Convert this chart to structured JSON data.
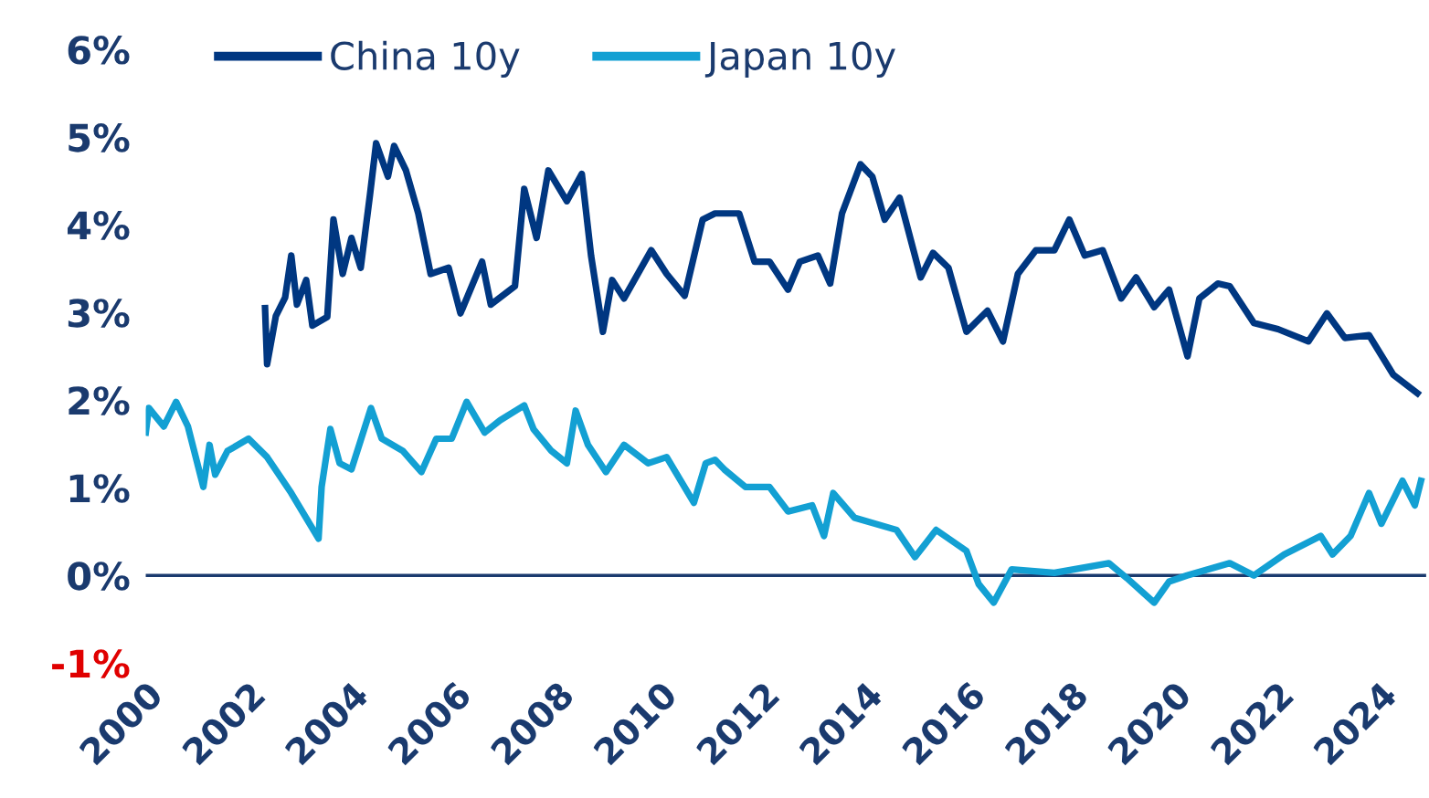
{
  "chart_data": {
    "type": "line",
    "xlim": [
      2000,
      2024.9
    ],
    "xticks": [
      2000,
      2002,
      2004,
      2006,
      2008,
      2010,
      2012,
      2014,
      2016,
      2018,
      2020,
      2022,
      2024
    ],
    "ylim": [
      -1,
      6
    ],
    "yticks": [
      {
        "value": -1,
        "label": "-1%"
      },
      {
        "value": 0,
        "label": "0%"
      },
      {
        "value": 1,
        "label": "1%"
      },
      {
        "value": 2,
        "label": "2%"
      },
      {
        "value": 3,
        "label": "3%"
      },
      {
        "value": 4,
        "label": "4%"
      },
      {
        "value": 5,
        "label": "5%"
      },
      {
        "value": 6,
        "label": "6%"
      }
    ],
    "grid": false,
    "legend": "top left",
    "marker": "none",
    "line_style": "solid",
    "ref_lines": [
      {
        "axis": "y",
        "value": 0,
        "color": "#1a3a6e"
      }
    ],
    "series": [
      {
        "name": "China 10y",
        "color": "#003781",
        "x": [
          2002.32,
          2002.36,
          2002.53,
          2002.71,
          2002.83,
          2002.94,
          2003.12,
          2003.24,
          2003.53,
          2003.65,
          2003.83,
          2004.0,
          2004.18,
          2004.36,
          2004.48,
          2004.71,
          2004.83,
          2005.06,
          2005.3,
          2005.54,
          2005.89,
          2006.12,
          2006.54,
          2006.71,
          2007.18,
          2007.36,
          2007.6,
          2007.83,
          2008.19,
          2008.48,
          2008.66,
          2008.89,
          2009.07,
          2009.3,
          2009.83,
          2010.13,
          2010.48,
          2010.83,
          2011.07,
          2011.54,
          2011.84,
          2012.13,
          2012.49,
          2012.72,
          2013.07,
          2013.31,
          2013.54,
          2013.9,
          2014.13,
          2014.37,
          2014.66,
          2015.07,
          2015.31,
          2015.61,
          2015.96,
          2016.37,
          2016.67,
          2016.96,
          2017.31,
          2017.67,
          2017.96,
          2018.26,
          2018.61,
          2018.97,
          2019.26,
          2019.61,
          2019.9,
          2020.26,
          2020.49,
          2020.85,
          2021.08,
          2021.55,
          2022.02,
          2022.61,
          2022.97,
          2023.32,
          2023.79,
          2024.26,
          2024.73
        ],
        "values": [
          3.05,
          2.41,
          2.96,
          3.17,
          3.65,
          3.09,
          3.37,
          2.85,
          2.95,
          4.06,
          3.44,
          3.85,
          3.51,
          4.34,
          4.93,
          4.55,
          4.9,
          4.62,
          4.13,
          3.44,
          3.51,
          2.99,
          3.58,
          3.09,
          3.3,
          4.41,
          3.85,
          4.62,
          4.27,
          4.58,
          3.65,
          2.78,
          3.37,
          3.16,
          3.71,
          3.44,
          3.19,
          4.06,
          4.13,
          4.13,
          3.58,
          3.58,
          3.26,
          3.58,
          3.65,
          3.33,
          4.13,
          4.69,
          4.55,
          4.06,
          4.31,
          3.4,
          3.68,
          3.51,
          2.78,
          3.02,
          2.67,
          3.44,
          3.71,
          3.71,
          4.06,
          3.65,
          3.71,
          3.16,
          3.4,
          3.06,
          3.26,
          2.5,
          3.16,
          3.33,
          3.3,
          2.88,
          2.81,
          2.67,
          2.99,
          2.71,
          2.74,
          2.29,
          2.08
        ]
      },
      {
        "name": "Japan 10y",
        "color": "#13a0d3",
        "x": [
          2000.0,
          2000.06,
          2000.35,
          2000.59,
          2000.82,
          2001.12,
          2001.24,
          2001.35,
          2001.59,
          2002.0,
          2002.36,
          2002.83,
          2003.36,
          2003.42,
          2003.59,
          2003.77,
          2004.0,
          2004.38,
          2004.59,
          2005.0,
          2005.36,
          2005.65,
          2005.95,
          2006.24,
          2006.59,
          2006.89,
          2007.36,
          2007.54,
          2007.89,
          2008.19,
          2008.36,
          2008.6,
          2008.95,
          2009.3,
          2009.77,
          2010.13,
          2010.66,
          2010.89,
          2011.07,
          2011.25,
          2011.66,
          2012.13,
          2012.49,
          2012.96,
          2013.19,
          2013.37,
          2013.78,
          2014.6,
          2014.96,
          2015.37,
          2015.96,
          2016.2,
          2016.49,
          2016.84,
          2017.67,
          2018.73,
          2019.08,
          2019.61,
          2019.9,
          2020.25,
          2021.08,
          2021.55,
          2022.14,
          2022.85,
          2023.08,
          2023.43,
          2023.79,
          2024.03,
          2024.44,
          2024.68,
          2024.8
        ],
        "values": [
          1.63,
          1.91,
          1.7,
          1.98,
          1.7,
          1.01,
          1.49,
          1.15,
          1.42,
          1.56,
          1.35,
          0.94,
          0.42,
          1.01,
          1.67,
          1.28,
          1.21,
          1.91,
          1.56,
          1.42,
          1.18,
          1.56,
          1.56,
          1.98,
          1.63,
          1.77,
          1.94,
          1.67,
          1.42,
          1.28,
          1.88,
          1.49,
          1.18,
          1.49,
          1.28,
          1.35,
          0.83,
          1.28,
          1.32,
          1.21,
          1.01,
          1.01,
          0.73,
          0.8,
          0.45,
          0.94,
          0.66,
          0.52,
          0.21,
          0.52,
          0.28,
          -0.1,
          -0.31,
          0.07,
          0.03,
          0.14,
          -0.03,
          -0.31,
          -0.07,
          0.0,
          0.14,
          0.0,
          0.24,
          0.45,
          0.24,
          0.45,
          0.94,
          0.59,
          1.08,
          0.8,
          1.08
        ]
      }
    ]
  }
}
